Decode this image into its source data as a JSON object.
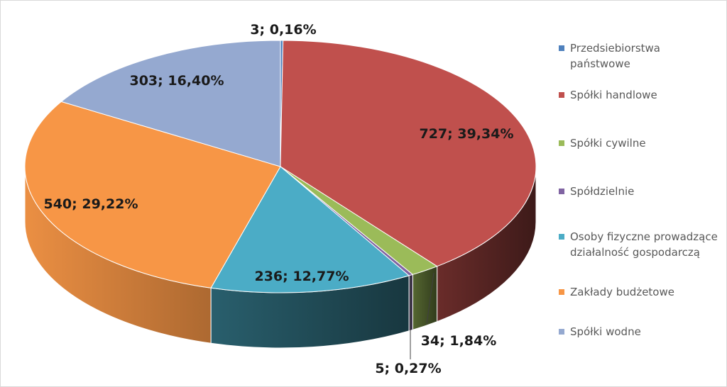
{
  "chart_data": {
    "type": "pie",
    "style": "3d-exploded-free",
    "legend_position": "right",
    "slices": [
      {
        "name": "Przedsiebiorstwa państwowe",
        "value": 3,
        "percent": "0,16%",
        "label": "3; 0,16%",
        "color": "#4f81bd"
      },
      {
        "name": "Spółki handlowe",
        "value": 727,
        "percent": "39,34%",
        "label": "727; 39,34%",
        "color": "#c0504d"
      },
      {
        "name": "Spółki cywilne",
        "value": 34,
        "percent": "1,84%",
        "label": "34; 1,84%",
        "color": "#9bbb59"
      },
      {
        "name": "Spółdzielnie",
        "value": 5,
        "percent": "0,27%",
        "label": "5; 0,27%",
        "color": "#8064a2"
      },
      {
        "name": "Osoby fizyczne prowadzące działalność gospodarczą",
        "value": 236,
        "percent": "12,77%",
        "label": "236; 12,77%",
        "color": "#4bacc6"
      },
      {
        "name": "Zakłady budżetowe",
        "value": 540,
        "percent": "29,22%",
        "label": "540; 29,22%",
        "color": "#f79646"
      },
      {
        "name": "Spółki wodne",
        "value": 303,
        "percent": "16,40%",
        "label": "303; 16,40%",
        "color": "#95a9d0"
      }
    ]
  }
}
